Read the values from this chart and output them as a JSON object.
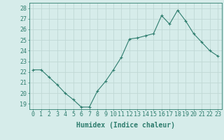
{
  "x": [
    0,
    1,
    2,
    3,
    4,
    5,
    6,
    7,
    8,
    9,
    10,
    11,
    12,
    13,
    14,
    15,
    16,
    17,
    18,
    19,
    20,
    21,
    22,
    23
  ],
  "y": [
    22.2,
    22.2,
    21.5,
    20.8,
    20.0,
    19.4,
    18.7,
    18.7,
    20.2,
    21.1,
    22.2,
    23.4,
    25.1,
    25.2,
    25.4,
    25.6,
    27.3,
    26.5,
    27.8,
    26.8,
    25.6,
    24.8,
    24.0,
    23.5
  ],
  "line_color": "#2e7d6e",
  "marker": "+",
  "bg_color": "#d6ecea",
  "grid_color": "#c0d8d5",
  "axis_color": "#2e7d6e",
  "xlabel": "Humidex (Indice chaleur)",
  "ylim": [
    18.5,
    28.5
  ],
  "xlim": [
    -0.5,
    23.5
  ],
  "yticks": [
    19,
    20,
    21,
    22,
    23,
    24,
    25,
    26,
    27,
    28
  ],
  "xticks": [
    0,
    1,
    2,
    3,
    4,
    5,
    6,
    7,
    8,
    9,
    10,
    11,
    12,
    13,
    14,
    15,
    16,
    17,
    18,
    19,
    20,
    21,
    22,
    23
  ],
  "xtick_labels": [
    "0",
    "1",
    "2",
    "3",
    "4",
    "5",
    "6",
    "7",
    "8",
    "9",
    "10",
    "11",
    "12",
    "13",
    "14",
    "15",
    "16",
    "17",
    "18",
    "19",
    "20",
    "21",
    "22",
    "23"
  ],
  "tick_fontsize": 6,
  "xlabel_fontsize": 7
}
